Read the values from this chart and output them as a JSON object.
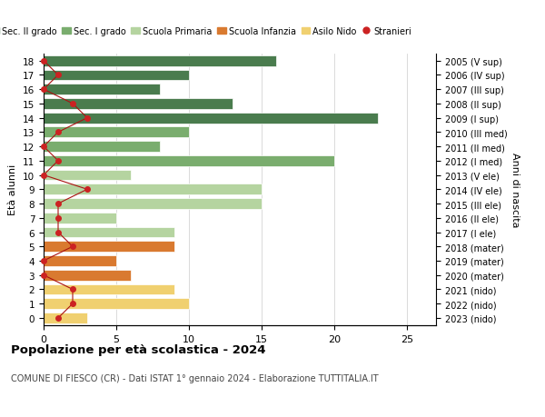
{
  "ages": [
    18,
    17,
    16,
    15,
    14,
    13,
    12,
    11,
    10,
    9,
    8,
    7,
    6,
    5,
    4,
    3,
    2,
    1,
    0
  ],
  "right_labels": [
    "2005 (V sup)",
    "2006 (IV sup)",
    "2007 (III sup)",
    "2008 (II sup)",
    "2009 (I sup)",
    "2010 (III med)",
    "2011 (II med)",
    "2012 (I med)",
    "2013 (V ele)",
    "2014 (IV ele)",
    "2015 (III ele)",
    "2016 (II ele)",
    "2017 (I ele)",
    "2018 (mater)",
    "2019 (mater)",
    "2020 (mater)",
    "2021 (nido)",
    "2022 (nido)",
    "2023 (nido)"
  ],
  "bar_values": [
    16,
    10,
    8,
    13,
    23,
    10,
    8,
    20,
    6,
    15,
    15,
    5,
    9,
    9,
    5,
    6,
    9,
    10,
    3
  ],
  "bar_colors": [
    "#4a7c4e",
    "#4a7c4e",
    "#4a7c4e",
    "#4a7c4e",
    "#4a7c4e",
    "#7aad6e",
    "#7aad6e",
    "#7aad6e",
    "#b5d4a0",
    "#b5d4a0",
    "#b5d4a0",
    "#b5d4a0",
    "#b5d4a0",
    "#d97a30",
    "#d97a30",
    "#d97a30",
    "#f0d070",
    "#f0d070",
    "#f0d070"
  ],
  "stranieri_x": [
    0,
    1,
    0,
    2,
    3,
    1,
    0,
    1,
    0,
    3,
    1,
    1,
    1,
    2,
    0,
    0,
    2,
    2,
    1
  ],
  "legend_labels": [
    "Sec. II grado",
    "Sec. I grado",
    "Scuola Primaria",
    "Scuola Infanzia",
    "Asilo Nido",
    "Stranieri"
  ],
  "legend_colors": [
    "#4a7c4e",
    "#7aad6e",
    "#b5d4a0",
    "#d97a30",
    "#f0d070",
    "#cc2222"
  ],
  "title_bold": "Popolazione per età scolastica - 2024",
  "subtitle": "COMUNE DI FIESCO (CR) - Dati ISTAT 1° gennaio 2024 - Elaborazione TUTTITALIA.IT",
  "ylabel_left": "Età alunni",
  "ylabel_right": "Anni di nascita",
  "xlim": [
    0,
    27
  ],
  "background_color": "#ffffff",
  "grid_color": "#cccccc"
}
